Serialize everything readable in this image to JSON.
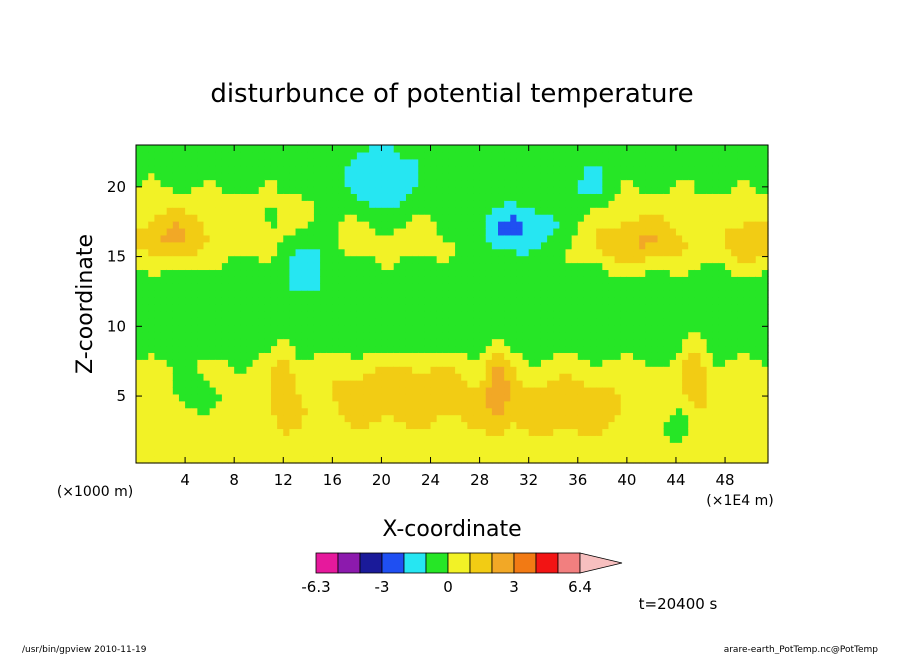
{
  "chart_data": {
    "type": "heatmap",
    "title": "disturbunce of potential temperature",
    "xlabel": "X-coordinate",
    "ylabel": "Z-coordinate",
    "x_unit_left": "(×1000 m)",
    "x_unit_right": "(×1E4 m)",
    "x_ticks": [
      "4",
      "8",
      "12",
      "16",
      "20",
      "24",
      "28",
      "32",
      "36",
      "40",
      "44",
      "48"
    ],
    "x_tick_values": [
      4,
      8,
      12,
      16,
      20,
      24,
      28,
      32,
      36,
      40,
      44,
      48
    ],
    "y_ticks": [
      "5",
      "10",
      "15",
      "20"
    ],
    "y_tick_values": [
      5,
      10,
      15,
      20
    ],
    "xlim": [
      0,
      51.5
    ],
    "ylim": [
      0.2,
      23
    ],
    "colorbar": {
      "colors": [
        "#e6199c",
        "#8c1aad",
        "#1a1a99",
        "#1f4ff2",
        "#26e6f2",
        "#26e626",
        "#f2f226",
        "#f2cc14",
        "#f2a826",
        "#f27a14",
        "#f21414",
        "#f27f7f",
        "#f7bfbf"
      ],
      "labels": [
        "-6.3",
        "-3",
        "0",
        "3",
        "6.4"
      ]
    },
    "field": {
      "description_values": "approximate temperature disturbance level per band",
      "base_level_by_height": [
        {
          "z": 0.2,
          "level": 0.5
        },
        {
          "z": 4,
          "level": 0.7
        },
        {
          "z": 7,
          "level": 0.2
        },
        {
          "z": 9,
          "level": -0.6
        },
        {
          "z": 13,
          "level": -0.7
        },
        {
          "z": 16,
          "level": 0.4
        },
        {
          "z": 19,
          "level": 0.1
        },
        {
          "z": 23,
          "level": -0.7
        }
      ],
      "anomalies": [
        {
          "x": 22,
          "z": 5.5,
          "rx": 6,
          "rz": 2.2,
          "amp": 1.4
        },
        {
          "x": 35,
          "z": 4.5,
          "rx": 5,
          "rz": 2,
          "amp": 1.2
        },
        {
          "x": 3,
          "z": 16.5,
          "rx": 3,
          "rz": 2,
          "amp": 1.8
        },
        {
          "x": 41,
          "z": 16,
          "rx": 4,
          "rz": 2,
          "amp": 1.7
        },
        {
          "x": 50,
          "z": 16,
          "rx": 2,
          "rz": 2,
          "amp": 1.6
        },
        {
          "x": 20,
          "z": 20,
          "rx": 3,
          "rz": 2.2,
          "amp": -1.8
        },
        {
          "x": 31,
          "z": 17,
          "rx": 4,
          "rz": 2,
          "amp": -2.4
        },
        {
          "x": 14,
          "z": 15,
          "rx": 2,
          "rz": 2,
          "amp": -1.4
        },
        {
          "x": 37,
          "z": 20,
          "rx": 1.5,
          "rz": 1.5,
          "amp": -1.2
        },
        {
          "x": 29.5,
          "z": 6,
          "rx": 1,
          "rz": 3,
          "amp": 1.8
        },
        {
          "x": 12,
          "z": 6,
          "rx": 1,
          "rz": 3,
          "amp": 1.5
        },
        {
          "x": 45.5,
          "z": 7,
          "rx": 1,
          "rz": 3,
          "amp": 1.6
        },
        {
          "x": 5,
          "z": 5,
          "rx": 2,
          "rz": 1.5,
          "amp": -1.1
        },
        {
          "x": 44,
          "z": 3,
          "rx": 2,
          "rz": 1.5,
          "amp": -1.0
        }
      ]
    }
  },
  "annotations": {
    "time_label": "t=20400 s",
    "footer_left": "/usr/bin/gpview   2010-11-19",
    "footer_right": "arare-earth_PotTemp.nc@PotTemp"
  }
}
